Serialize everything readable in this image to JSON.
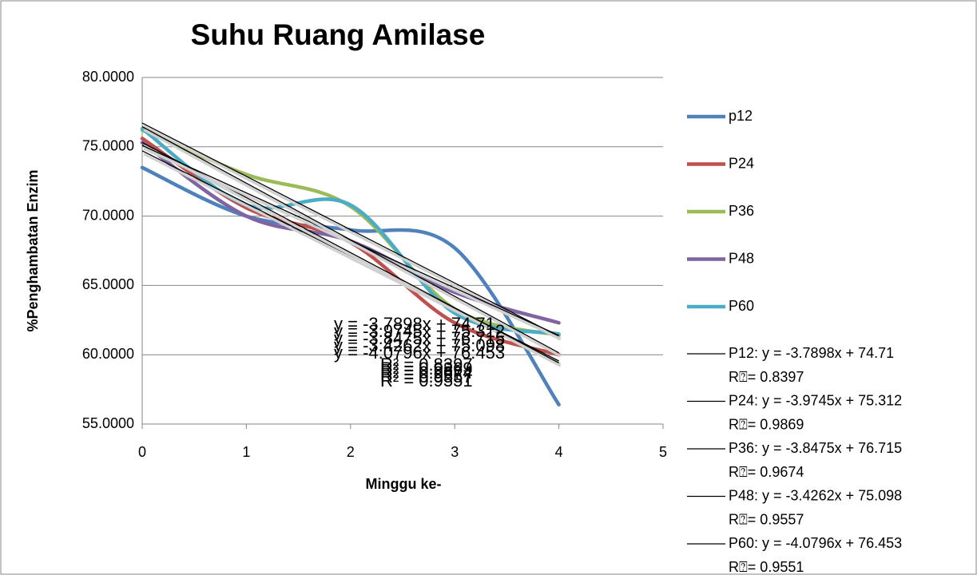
{
  "chart_data": {
    "type": "line",
    "title": "Suhu Ruang Amilase",
    "x_label": "Minggu ke-",
    "y_label": "%Penghambatan Enzim",
    "x": [
      0,
      1,
      2,
      3,
      4
    ],
    "xlim": [
      0,
      5
    ],
    "xticks": [
      0,
      1,
      2,
      3,
      4,
      5
    ],
    "ylim": [
      55,
      80
    ],
    "yticks": [
      {
        "value": 55,
        "label": "55.0000"
      },
      {
        "value": 60,
        "label": "60.0000"
      },
      {
        "value": 65,
        "label": "65.0000"
      },
      {
        "value": 70,
        "label": "70.0000"
      },
      {
        "value": 75,
        "label": "75.0000"
      },
      {
        "value": 80,
        "label": "80.0000"
      }
    ],
    "grid": true,
    "smooth": true,
    "legend": "right",
    "series": [
      {
        "name": "p12",
        "color": "#4f81bd",
        "values": [
          73.5,
          70.0,
          69.0,
          67.7,
          56.4
        ]
      },
      {
        "name": "P24",
        "color": "#c0504d",
        "values": [
          75.6,
          70.6,
          68.1,
          62.3,
          60.0
        ]
      },
      {
        "name": "P36",
        "color": "#9bbb59",
        "values": [
          76.2,
          73.0,
          70.7,
          63.3,
          61.4
        ]
      },
      {
        "name": "P48",
        "color": "#8064a2",
        "values": [
          75.3,
          70.0,
          68.2,
          64.5,
          62.3
        ]
      },
      {
        "name": "P60",
        "color": "#4bacc6",
        "values": [
          76.3,
          70.8,
          70.8,
          63.0,
          61.5
        ]
      }
    ],
    "trendlines": [
      {
        "label": "P12: y = -3.7898x + 74.71",
        "r2_label": "R⍰= 0.8397",
        "equation": "y = -3.7898x + 74.71",
        "r2": "R² = 0.8397",
        "slope": -3.7898,
        "intercept": 74.71,
        "color": "#000000"
      },
      {
        "label": "P24: y = -3.9745x + 75.312",
        "r2_label": "R⍰= 0.9869",
        "equation": "y = -3.9745x + 75.312",
        "r2": "R² = 0.9869",
        "slope": -3.9745,
        "intercept": 75.312,
        "color": "#000000"
      },
      {
        "label": "P36: y = -3.8475x + 76.715",
        "r2_label": "R⍰= 0.9674",
        "equation": "y = -3.8475x + 76.715",
        "r2": "R² = 0.9674",
        "slope": -3.8475,
        "intercept": 76.715,
        "color": "#000000"
      },
      {
        "label": "P48: y = -3.4262x + 75.098",
        "r2_label": "R⍰= 0.9557",
        "equation": "y = -3.4262x + 75.098",
        "r2": "R² = 0.9557",
        "slope": -3.4262,
        "intercept": 75.098,
        "color": "#000000"
      },
      {
        "label": "P60: y = -4.0796x + 76.453",
        "r2_label": "R⍰= 0.9551",
        "equation": "y = -4.0796x + 76.453",
        "r2": "R² = 0.9551",
        "slope": -4.0796,
        "intercept": 76.453,
        "color": "#000000"
      }
    ]
  }
}
